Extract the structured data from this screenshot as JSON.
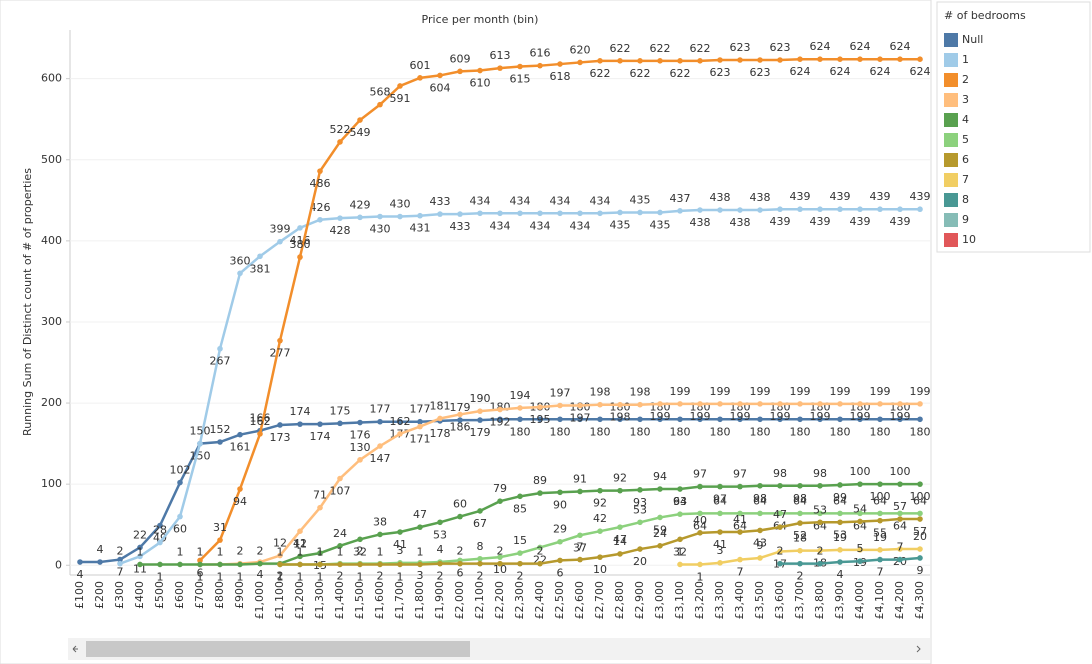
{
  "chart_data": {
    "type": "line",
    "title": "Price per month (bin)",
    "y_label": "Running Sum of Distinct count of # of properties",
    "legend_title": "# of bedrooms",
    "legend": "right",
    "grid": true,
    "ylim": [
      -12,
      660
    ],
    "yticks": [
      0,
      100,
      200,
      300,
      400,
      500,
      600
    ],
    "categories": [
      "£100",
      "£200",
      "£300",
      "£400",
      "£500",
      "£600",
      "£700",
      "£800",
      "£900",
      "£1,000",
      "£1,100",
      "£1,200",
      "£1,300",
      "£1,400",
      "£1,500",
      "£1,600",
      "£1,700",
      "£1,800",
      "£1,900",
      "£2,000",
      "£2,100",
      "£2,200",
      "£2,300",
      "£2,400",
      "£2,500",
      "£2,600",
      "£2,700",
      "£2,800",
      "£2,900",
      "£3,000",
      "£3,100",
      "£3,200",
      "£3,300",
      "£3,400",
      "£3,500",
      "£3,600",
      "£3,700",
      "£3,800",
      "£3,900",
      "£4,000",
      "£4,100",
      "£4,200",
      "£4,300"
    ],
    "series": [
      {
        "name": "Null",
        "color": "#4e79a7",
        "values": [
          4,
          4,
          7,
          22,
          49,
          102,
          150,
          152,
          161,
          166,
          173,
          174,
          174,
          175,
          176,
          177,
          177,
          177,
          178,
          179,
          179,
          180,
          180,
          180,
          180,
          180,
          180,
          180,
          180,
          180,
          180,
          180,
          180,
          180,
          180,
          180,
          180,
          180,
          180,
          180,
          180,
          180,
          180
        ]
      },
      {
        "name": "1",
        "color": "#a0cbe8",
        "values": [
          null,
          null,
          2,
          11,
          28,
          60,
          150,
          267,
          360,
          381,
          399,
          416,
          426,
          428,
          429,
          430,
          430,
          431,
          433,
          433,
          434,
          434,
          434,
          434,
          434,
          434,
          434,
          435,
          435,
          435,
          437,
          438,
          438,
          438,
          438,
          439,
          439,
          439,
          439,
          439,
          439,
          439,
          439
        ]
      },
      {
        "name": "2",
        "color": "#f28e2b",
        "values": [
          null,
          null,
          null,
          null,
          null,
          null,
          6,
          31,
          94,
          162,
          277,
          380,
          486,
          522,
          549,
          568,
          591,
          601,
          604,
          609,
          610,
          613,
          615,
          616,
          618,
          620,
          622,
          622,
          622,
          622,
          622,
          622,
          623,
          623,
          623,
          623,
          624,
          624,
          624,
          624,
          624,
          624,
          624
        ]
      },
      {
        "name": "3",
        "color": "#ffbe7d",
        "values": [
          null,
          null,
          null,
          null,
          null,
          null,
          1,
          1,
          2,
          4,
          12,
          42,
          71,
          107,
          130,
          147,
          162,
          171,
          181,
          186,
          190,
          192,
          194,
          195,
          197,
          197,
          198,
          198,
          198,
          199,
          199,
          199,
          199,
          199,
          199,
          199,
          199,
          199,
          199,
          199,
          199,
          199,
          199
        ]
      },
      {
        "name": "4",
        "color": "#59a14f",
        "values": [
          null,
          null,
          null,
          1,
          1,
          1,
          1,
          1,
          1,
          2,
          2,
          11,
          15,
          24,
          32,
          38,
          41,
          47,
          53,
          60,
          67,
          79,
          85,
          89,
          90,
          91,
          92,
          92,
          93,
          94,
          94,
          97,
          97,
          97,
          98,
          98,
          98,
          98,
          99,
          100,
          100,
          100,
          100
        ]
      },
      {
        "name": "5",
        "color": "#8cd17d",
        "values": [
          null,
          null,
          null,
          null,
          null,
          null,
          null,
          null,
          null,
          null,
          1,
          1,
          1,
          2,
          2,
          2,
          3,
          3,
          4,
          6,
          8,
          10,
          15,
          22,
          29,
          37,
          42,
          47,
          53,
          59,
          63,
          64,
          64,
          64,
          64,
          64,
          64,
          64,
          64,
          64,
          64,
          64,
          64
        ]
      },
      {
        "name": "6",
        "color": "#b6992d",
        "values": [
          null,
          null,
          null,
          null,
          null,
          null,
          null,
          null,
          null,
          null,
          1,
          1,
          1,
          1,
          1,
          1,
          1,
          1,
          2,
          2,
          2,
          2,
          2,
          2,
          6,
          7,
          10,
          14,
          20,
          24,
          32,
          40,
          41,
          41,
          43,
          47,
          52,
          53,
          53,
          54,
          55,
          57,
          57
        ]
      },
      {
        "name": "7",
        "color": "#f1ce63",
        "values": [
          null,
          null,
          null,
          null,
          null,
          null,
          null,
          null,
          null,
          null,
          null,
          null,
          null,
          null,
          null,
          null,
          null,
          null,
          null,
          null,
          null,
          null,
          null,
          null,
          null,
          null,
          null,
          null,
          null,
          null,
          1,
          1,
          3,
          7,
          9,
          17,
          18,
          18,
          19,
          19,
          19,
          20,
          20
        ]
      },
      {
        "name": "8",
        "color": "#499894",
        "values": [
          null,
          null,
          null,
          null,
          null,
          null,
          null,
          null,
          null,
          null,
          null,
          null,
          null,
          null,
          null,
          null,
          null,
          null,
          null,
          null,
          null,
          null,
          null,
          null,
          null,
          null,
          null,
          null,
          null,
          null,
          null,
          null,
          null,
          null,
          null,
          2,
          2,
          2,
          4,
          5,
          7,
          7,
          9
        ]
      },
      {
        "name": "9",
        "color": "#86bcb6",
        "values": [
          null,
          null,
          null,
          null,
          null,
          null,
          null,
          null,
          null,
          null,
          null,
          null,
          null,
          null,
          null,
          null,
          null,
          null,
          null,
          null,
          null,
          null,
          null,
          null,
          null,
          null,
          null,
          null,
          null,
          null,
          null,
          null,
          null,
          null,
          null,
          null,
          null,
          null,
          null,
          null,
          null,
          null,
          null
        ]
      },
      {
        "name": "10",
        "color": "#e15759",
        "values": [
          null,
          null,
          null,
          null,
          null,
          null,
          null,
          null,
          null,
          null,
          null,
          null,
          null,
          null,
          null,
          null,
          null,
          null,
          null,
          null,
          null,
          null,
          null,
          null,
          null,
          null,
          null,
          null,
          null,
          null,
          null,
          null,
          null,
          null,
          null,
          null,
          null,
          null,
          null,
          null,
          null,
          null,
          null
        ]
      }
    ]
  }
}
